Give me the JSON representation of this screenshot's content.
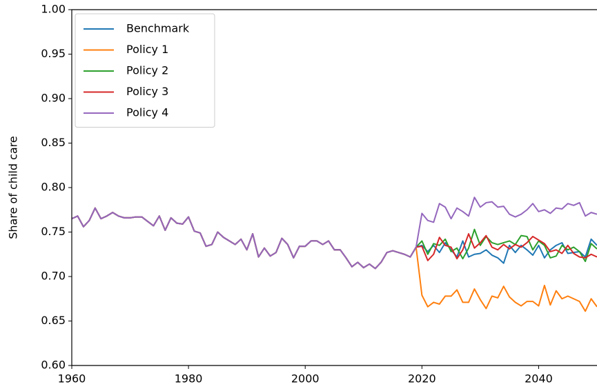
{
  "chart_data": {
    "type": "line",
    "y_label": "Share of child care",
    "x": [
      1960,
      1961,
      1962,
      1963,
      1964,
      1965,
      1966,
      1967,
      1968,
      1969,
      1970,
      1971,
      1972,
      1973,
      1974,
      1975,
      1976,
      1977,
      1978,
      1979,
      1980,
      1981,
      1982,
      1983,
      1984,
      1985,
      1986,
      1987,
      1988,
      1989,
      1990,
      1991,
      1992,
      1993,
      1994,
      1995,
      1996,
      1997,
      1998,
      1999,
      2000,
      2001,
      2002,
      2003,
      2004,
      2005,
      2006,
      2007,
      2008,
      2009,
      2010,
      2011,
      2012,
      2013,
      2014,
      2015,
      2016,
      2017,
      2018,
      2019,
      2020,
      2021,
      2022,
      2023,
      2024,
      2025,
      2026,
      2027,
      2028,
      2029,
      2030,
      2031,
      2032,
      2033,
      2034,
      2035,
      2036,
      2037,
      2038,
      2039,
      2040,
      2041,
      2042,
      2043,
      2044,
      2045,
      2046,
      2047,
      2048,
      2049,
      2050
    ],
    "series": [
      {
        "name": "Benchmark",
        "color": "#1f77b4",
        "values": [
          0.765,
          0.768,
          0.756,
          0.763,
          0.777,
          0.765,
          0.768,
          0.772,
          0.768,
          0.766,
          0.766,
          0.767,
          0.767,
          0.762,
          0.757,
          0.768,
          0.752,
          0.766,
          0.76,
          0.759,
          0.767,
          0.751,
          0.749,
          0.734,
          0.736,
          0.75,
          0.744,
          0.74,
          0.736,
          0.742,
          0.73,
          0.748,
          0.722,
          0.732,
          0.723,
          0.727,
          0.743,
          0.736,
          0.721,
          0.734,
          0.734,
          0.74,
          0.74,
          0.736,
          0.74,
          0.73,
          0.73,
          0.721,
          0.711,
          0.716,
          0.71,
          0.714,
          0.709,
          0.716,
          0.727,
          0.729,
          0.727,
          0.725,
          0.722,
          0.733,
          0.735,
          0.728,
          0.735,
          0.727,
          0.738,
          0.73,
          0.722,
          0.74,
          0.722,
          0.725,
          0.726,
          0.73,
          0.724,
          0.721,
          0.715,
          0.735,
          0.727,
          0.735,
          0.73,
          0.724,
          0.735,
          0.721,
          0.73,
          0.735,
          0.738,
          0.726,
          0.727,
          0.728,
          0.722,
          0.742,
          0.735
        ]
      },
      {
        "name": "Policy 1",
        "color": "#ff7f0e",
        "values": [
          0.765,
          0.768,
          0.756,
          0.763,
          0.777,
          0.765,
          0.768,
          0.772,
          0.768,
          0.766,
          0.766,
          0.767,
          0.767,
          0.762,
          0.757,
          0.768,
          0.752,
          0.766,
          0.76,
          0.759,
          0.767,
          0.751,
          0.749,
          0.734,
          0.736,
          0.75,
          0.744,
          0.74,
          0.736,
          0.742,
          0.73,
          0.748,
          0.722,
          0.732,
          0.723,
          0.727,
          0.743,
          0.736,
          0.721,
          0.734,
          0.734,
          0.74,
          0.74,
          0.736,
          0.74,
          0.73,
          0.73,
          0.721,
          0.711,
          0.716,
          0.71,
          0.714,
          0.709,
          0.716,
          0.727,
          0.729,
          0.727,
          0.725,
          0.722,
          0.733,
          0.679,
          0.666,
          0.671,
          0.669,
          0.678,
          0.678,
          0.685,
          0.671,
          0.671,
          0.686,
          0.674,
          0.664,
          0.678,
          0.676,
          0.689,
          0.677,
          0.671,
          0.667,
          0.672,
          0.672,
          0.667,
          0.69,
          0.668,
          0.684,
          0.675,
          0.678,
          0.675,
          0.672,
          0.661,
          0.675,
          0.666
        ]
      },
      {
        "name": "Policy 2",
        "color": "#2ca02c",
        "values": [
          0.765,
          0.768,
          0.756,
          0.763,
          0.777,
          0.765,
          0.768,
          0.772,
          0.768,
          0.766,
          0.766,
          0.767,
          0.767,
          0.762,
          0.757,
          0.768,
          0.752,
          0.766,
          0.76,
          0.759,
          0.767,
          0.751,
          0.749,
          0.734,
          0.736,
          0.75,
          0.744,
          0.74,
          0.736,
          0.742,
          0.73,
          0.748,
          0.722,
          0.732,
          0.723,
          0.727,
          0.743,
          0.736,
          0.721,
          0.734,
          0.734,
          0.74,
          0.74,
          0.736,
          0.74,
          0.73,
          0.73,
          0.721,
          0.711,
          0.716,
          0.71,
          0.714,
          0.709,
          0.716,
          0.727,
          0.729,
          0.727,
          0.725,
          0.722,
          0.733,
          0.74,
          0.725,
          0.737,
          0.735,
          0.742,
          0.728,
          0.732,
          0.72,
          0.732,
          0.753,
          0.735,
          0.745,
          0.738,
          0.736,
          0.738,
          0.74,
          0.736,
          0.746,
          0.745,
          0.73,
          0.74,
          0.735,
          0.721,
          0.723,
          0.735,
          0.73,
          0.733,
          0.728,
          0.717,
          0.737,
          0.731
        ]
      },
      {
        "name": "Policy 3",
        "color": "#d62728",
        "values": [
          0.765,
          0.768,
          0.756,
          0.763,
          0.777,
          0.765,
          0.768,
          0.772,
          0.768,
          0.766,
          0.766,
          0.767,
          0.767,
          0.762,
          0.757,
          0.768,
          0.752,
          0.766,
          0.76,
          0.759,
          0.767,
          0.751,
          0.749,
          0.734,
          0.736,
          0.75,
          0.744,
          0.74,
          0.736,
          0.742,
          0.73,
          0.748,
          0.722,
          0.732,
          0.723,
          0.727,
          0.743,
          0.736,
          0.721,
          0.734,
          0.734,
          0.74,
          0.74,
          0.736,
          0.74,
          0.73,
          0.73,
          0.721,
          0.711,
          0.716,
          0.71,
          0.714,
          0.709,
          0.716,
          0.727,
          0.729,
          0.727,
          0.725,
          0.722,
          0.733,
          0.734,
          0.718,
          0.725,
          0.744,
          0.735,
          0.733,
          0.72,
          0.73,
          0.748,
          0.732,
          0.738,
          0.746,
          0.733,
          0.73,
          0.736,
          0.731,
          0.736,
          0.733,
          0.738,
          0.745,
          0.741,
          0.737,
          0.728,
          0.73,
          0.726,
          0.735,
          0.726,
          0.722,
          0.721,
          0.725,
          0.722
        ]
      },
      {
        "name": "Policy 4",
        "color": "#9467bd",
        "values": [
          0.765,
          0.768,
          0.756,
          0.763,
          0.777,
          0.765,
          0.768,
          0.772,
          0.768,
          0.766,
          0.766,
          0.767,
          0.767,
          0.762,
          0.757,
          0.768,
          0.752,
          0.766,
          0.76,
          0.759,
          0.767,
          0.751,
          0.749,
          0.734,
          0.736,
          0.75,
          0.744,
          0.74,
          0.736,
          0.742,
          0.73,
          0.748,
          0.722,
          0.732,
          0.723,
          0.727,
          0.743,
          0.736,
          0.721,
          0.734,
          0.734,
          0.74,
          0.74,
          0.736,
          0.74,
          0.73,
          0.73,
          0.721,
          0.711,
          0.716,
          0.71,
          0.714,
          0.709,
          0.716,
          0.727,
          0.729,
          0.727,
          0.725,
          0.722,
          0.733,
          0.771,
          0.763,
          0.761,
          0.782,
          0.778,
          0.765,
          0.777,
          0.773,
          0.768,
          0.789,
          0.778,
          0.783,
          0.784,
          0.778,
          0.779,
          0.77,
          0.767,
          0.77,
          0.775,
          0.782,
          0.773,
          0.775,
          0.771,
          0.777,
          0.776,
          0.782,
          0.78,
          0.783,
          0.768,
          0.772,
          0.77
        ]
      }
    ],
    "xlim": [
      1960,
      2050
    ],
    "ylim": [
      0.6,
      1.0
    ],
    "xticks": [
      1960,
      1980,
      2000,
      2020,
      2040
    ],
    "yticks": [
      {
        "value": 0.6,
        "label": "0.60"
      },
      {
        "value": 0.65,
        "label": "0.65"
      },
      {
        "value": 0.7,
        "label": "0.70"
      },
      {
        "value": 0.75,
        "label": "0.75"
      },
      {
        "value": 0.8,
        "label": "0.80"
      },
      {
        "value": 0.85,
        "label": "0.85"
      },
      {
        "value": 0.9,
        "label": "0.90"
      },
      {
        "value": 0.95,
        "label": "0.95"
      },
      {
        "value": 1.0,
        "label": "1.00"
      }
    ],
    "legend": "upper left"
  }
}
